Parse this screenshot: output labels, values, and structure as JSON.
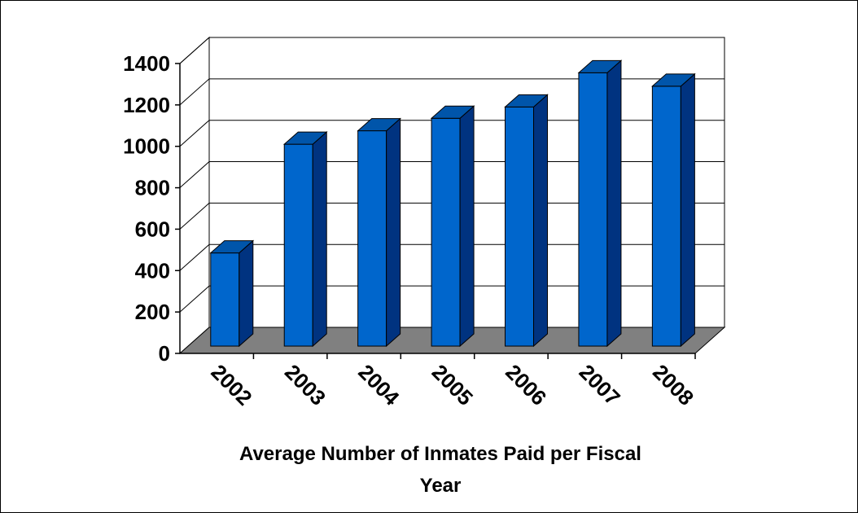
{
  "chart_data": {
    "type": "bar",
    "style": "3d-column",
    "title": "",
    "xlabel_lines": [
      "Average Number of Inmates Paid per Fiscal",
      "Year"
    ],
    "ylabel": "",
    "categories": [
      "2002",
      "2003",
      "2004",
      "2005",
      "2006",
      "2007",
      "2008"
    ],
    "values": [
      450,
      975,
      1040,
      1100,
      1155,
      1320,
      1255
    ],
    "yticks": [
      0,
      200,
      400,
      600,
      800,
      1000,
      1200,
      1400
    ],
    "ylim": [
      0,
      1400
    ],
    "grid": true,
    "legend": "none",
    "colors": {
      "bar_front": "#0066CC",
      "bar_side": "#003380",
      "bar_top": "#0055AA",
      "floor": "#808080",
      "grid": "#000000",
      "wall": "#FFFFFF"
    }
  }
}
